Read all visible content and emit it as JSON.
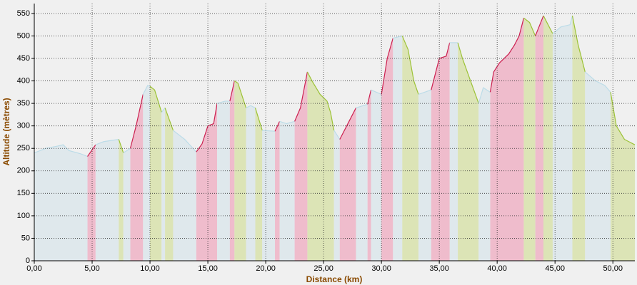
{
  "chart_data": {
    "type": "area",
    "xlabel": "Distance (km)",
    "ylabel": "Altitude (mètres)",
    "x": [
      0,
      1,
      2,
      2.5,
      3,
      4,
      4.6,
      5.3,
      6,
      7.3,
      7.7,
      8.3,
      8.8,
      9.4,
      9.8,
      10,
      10.4,
      11,
      11.3,
      12,
      13,
      14,
      14.5,
      15,
      15.5,
      15.8,
      16.5,
      16.9,
      17.3,
      17.6,
      18.3,
      18.7,
      19.1,
      19.7,
      20.8,
      21.2,
      21.8,
      22.5,
      23,
      23.6,
      24,
      24.7,
      25.3,
      25.6,
      25.9,
      26.4,
      27,
      27.8,
      28.8,
      29.1,
      30,
      30.5,
      31,
      31.8,
      32.3,
      32.8,
      33.2,
      34.3,
      35,
      35.6,
      35.9,
      36.6,
      37,
      37.7,
      38.4,
      38.8,
      39.4,
      39.7,
      40.2,
      41,
      41.5,
      41.9,
      42.3,
      42.8,
      43.3,
      44,
      44.8,
      45.5,
      46.3,
      46.5,
      47,
      47.6,
      48.5,
      49.3,
      49.8,
      50.3,
      51,
      51.9
    ],
    "values": [
      240,
      250,
      255,
      258,
      245,
      238,
      232,
      258,
      265,
      270,
      240,
      250,
      300,
      370,
      390,
      388,
      380,
      330,
      340,
      290,
      270,
      242,
      260,
      300,
      305,
      350,
      355,
      355,
      400,
      395,
      340,
      345,
      340,
      290,
      288,
      310,
      305,
      310,
      340,
      420,
      400,
      370,
      355,
      330,
      290,
      270,
      300,
      340,
      348,
      380,
      370,
      450,
      495,
      500,
      470,
      400,
      370,
      380,
      450,
      455,
      485,
      485,
      450,
      400,
      350,
      385,
      375,
      420,
      440,
      460,
      480,
      500,
      540,
      530,
      500,
      545,
      505,
      520,
      525,
      545,
      480,
      420,
      400,
      390,
      375,
      300,
      270,
      258
    ],
    "bands": [
      {
        "from": 0,
        "to": 4.6,
        "fill": "#dfe8ec",
        "color": "#bcdce8"
      },
      {
        "from": 4.6,
        "to": 5.3,
        "fill": "#efbccc",
        "color": "#cc2050"
      },
      {
        "from": 5.3,
        "to": 7.3,
        "fill": "#dfe8ec",
        "color": "#bcdce8"
      },
      {
        "from": 7.3,
        "to": 7.7,
        "fill": "#dce4b6",
        "color": "#9cc236"
      },
      {
        "from": 7.7,
        "to": 8.3,
        "fill": "#dfe8ec",
        "color": "#bcdce8"
      },
      {
        "from": 8.3,
        "to": 9.4,
        "fill": "#efbccc",
        "color": "#cc2050"
      },
      {
        "from": 9.4,
        "to": 10,
        "fill": "#dfe8ec",
        "color": "#bcdce8"
      },
      {
        "from": 10,
        "to": 11,
        "fill": "#dce4b6",
        "color": "#9cc236"
      },
      {
        "from": 11,
        "to": 11.3,
        "fill": "#dfe8ec",
        "color": "#bcdce8"
      },
      {
        "from": 11.3,
        "to": 12,
        "fill": "#dce4b6",
        "color": "#9cc236"
      },
      {
        "from": 12,
        "to": 14,
        "fill": "#dfe8ec",
        "color": "#bcdce8"
      },
      {
        "from": 14,
        "to": 15.8,
        "fill": "#efbccc",
        "color": "#cc2050"
      },
      {
        "from": 15.8,
        "to": 16.9,
        "fill": "#dfe8ec",
        "color": "#bcdce8"
      },
      {
        "from": 16.9,
        "to": 17.3,
        "fill": "#efbccc",
        "color": "#cc2050"
      },
      {
        "from": 17.3,
        "to": 18.3,
        "fill": "#dce4b6",
        "color": "#9cc236"
      },
      {
        "from": 18.3,
        "to": 19.1,
        "fill": "#dfe8ec",
        "color": "#bcdce8"
      },
      {
        "from": 19.1,
        "to": 19.7,
        "fill": "#dce4b6",
        "color": "#9cc236"
      },
      {
        "from": 19.7,
        "to": 20.8,
        "fill": "#dfe8ec",
        "color": "#bcdce8"
      },
      {
        "from": 20.8,
        "to": 21.2,
        "fill": "#efbccc",
        "color": "#cc2050"
      },
      {
        "from": 21.2,
        "to": 22.5,
        "fill": "#dfe8ec",
        "color": "#bcdce8"
      },
      {
        "from": 22.5,
        "to": 23.6,
        "fill": "#efbccc",
        "color": "#cc2050"
      },
      {
        "from": 23.6,
        "to": 25.9,
        "fill": "#dce4b6",
        "color": "#9cc236"
      },
      {
        "from": 25.9,
        "to": 26.4,
        "fill": "#dfe8ec",
        "color": "#bcdce8"
      },
      {
        "from": 26.4,
        "to": 27.8,
        "fill": "#efbccc",
        "color": "#cc2050"
      },
      {
        "from": 27.8,
        "to": 28.8,
        "fill": "#dfe8ec",
        "color": "#bcdce8"
      },
      {
        "from": 28.8,
        "to": 29.1,
        "fill": "#efbccc",
        "color": "#cc2050"
      },
      {
        "from": 29.1,
        "to": 30,
        "fill": "#dfe8ec",
        "color": "#bcdce8"
      },
      {
        "from": 30,
        "to": 31,
        "fill": "#efbccc",
        "color": "#cc2050"
      },
      {
        "from": 31,
        "to": 31.8,
        "fill": "#dfe8ec",
        "color": "#bcdce8"
      },
      {
        "from": 31.8,
        "to": 33.2,
        "fill": "#dce4b6",
        "color": "#9cc236"
      },
      {
        "from": 33.2,
        "to": 34.3,
        "fill": "#dfe8ec",
        "color": "#bcdce8"
      },
      {
        "from": 34.3,
        "to": 35.9,
        "fill": "#efbccc",
        "color": "#cc2050"
      },
      {
        "from": 35.9,
        "to": 36.6,
        "fill": "#dfe8ec",
        "color": "#bcdce8"
      },
      {
        "from": 36.6,
        "to": 38.4,
        "fill": "#dce4b6",
        "color": "#9cc236"
      },
      {
        "from": 38.4,
        "to": 39.4,
        "fill": "#dfe8ec",
        "color": "#bcdce8"
      },
      {
        "from": 39.4,
        "to": 42.3,
        "fill": "#efbccc",
        "color": "#cc2050"
      },
      {
        "from": 42.3,
        "to": 43.3,
        "fill": "#dce4b6",
        "color": "#9cc236"
      },
      {
        "from": 43.3,
        "to": 44,
        "fill": "#efbccc",
        "color": "#cc2050"
      },
      {
        "from": 44,
        "to": 44.8,
        "fill": "#dce4b6",
        "color": "#9cc236"
      },
      {
        "from": 44.8,
        "to": 46.5,
        "fill": "#dfe8ec",
        "color": "#bcdce8"
      },
      {
        "from": 46.5,
        "to": 47.6,
        "fill": "#dce4b6",
        "color": "#9cc236"
      },
      {
        "from": 47.6,
        "to": 49.8,
        "fill": "#dfe8ec",
        "color": "#bcdce8"
      },
      {
        "from": 49.8,
        "to": 51.9,
        "fill": "#dce4b6",
        "color": "#9cc236"
      }
    ],
    "xlim": [
      0,
      51.9
    ],
    "ylim": [
      0,
      572
    ],
    "xticks": [
      {
        "value": 0,
        "label": "0,00"
      },
      {
        "value": 5,
        "label": "5,00"
      },
      {
        "value": 10,
        "label": "10,00"
      },
      {
        "value": 15,
        "label": "15,00"
      },
      {
        "value": 20,
        "label": "20,00"
      },
      {
        "value": 25,
        "label": "25,00"
      },
      {
        "value": 30,
        "label": "30,00"
      },
      {
        "value": 35,
        "label": "35,00"
      },
      {
        "value": 40,
        "label": "40,00"
      },
      {
        "value": 45,
        "label": "45,00"
      },
      {
        "value": 50,
        "label": "50,00"
      }
    ],
    "yticks": [
      0,
      50,
      100,
      150,
      200,
      250,
      300,
      350,
      400,
      450,
      500,
      550
    ],
    "grid": true
  }
}
